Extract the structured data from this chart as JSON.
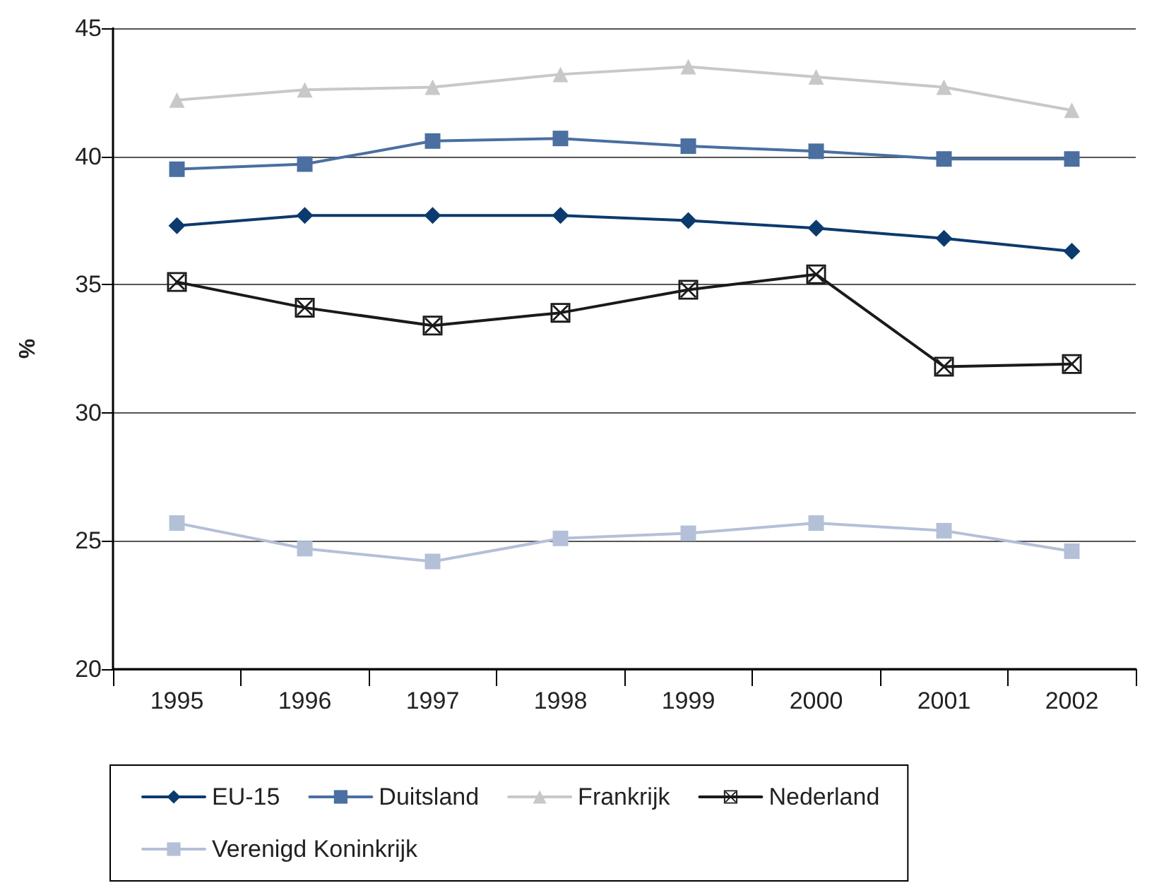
{
  "chart_data": {
    "type": "line",
    "ylabel": "%",
    "categories": [
      "1995",
      "1996",
      "1997",
      "1998",
      "1999",
      "2000",
      "2001",
      "2002"
    ],
    "series": [
      {
        "name": "EU-15",
        "color": "#0b3a6e",
        "marker": "diamond",
        "values": [
          37.3,
          37.7,
          37.7,
          37.7,
          37.5,
          37.2,
          36.8,
          36.3
        ]
      },
      {
        "name": "Duitsland",
        "color": "#4a6fa0",
        "marker": "square",
        "values": [
          39.5,
          39.7,
          40.6,
          40.7,
          40.4,
          40.2,
          39.9,
          39.9
        ]
      },
      {
        "name": "Frankrijk",
        "color": "#c8c8c8",
        "marker": "triangle",
        "values": [
          42.2,
          42.6,
          42.7,
          43.2,
          43.5,
          43.1,
          42.7,
          41.8
        ]
      },
      {
        "name": "Nederland",
        "color": "#1a1a1a",
        "marker": "cross",
        "values": [
          35.1,
          34.1,
          33.4,
          33.9,
          34.8,
          35.4,
          31.8,
          31.9
        ]
      },
      {
        "name": "Verenigd Koninkrijk",
        "color": "#b4c0d8",
        "marker": "square",
        "values": [
          25.7,
          24.7,
          24.2,
          25.1,
          25.3,
          25.7,
          25.4,
          24.6
        ]
      }
    ],
    "ylim": [
      20,
      45
    ],
    "yticks": [
      20,
      25,
      30,
      35,
      40,
      45
    ],
    "grid": "y",
    "legend": "bottom"
  }
}
